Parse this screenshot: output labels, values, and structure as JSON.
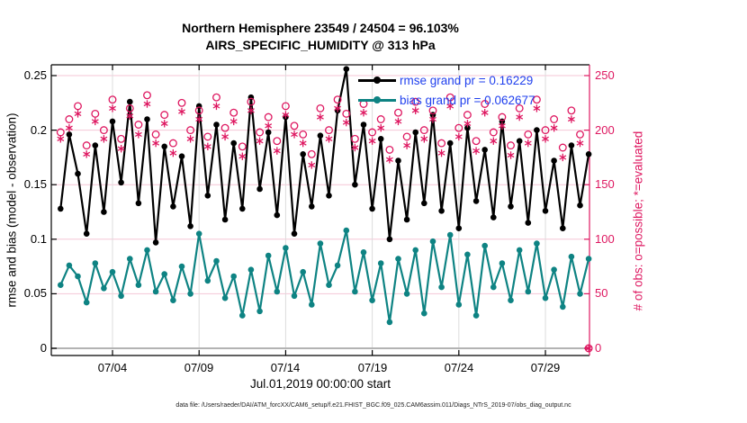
{
  "title": {
    "line1": "Northern Hemisphere 23549 / 24504 = 96.103%",
    "line2": "AIRS_SPECIFIC_HUMIDITY @ 313 hPa"
  },
  "legend": [
    {
      "label": "rmse grand pr = 0.16229",
      "color": "#000000"
    },
    {
      "label": "bias grand pr = 0.062677",
      "color": "#0e8383"
    }
  ],
  "footer": {
    "data_file": "data file: /Users/raeder/DAI/ATM_forcXX/CAM6_setup/f.e21.FHIST_BGC.f09_025.CAM6assim.011/Diags_NTrS_2019-07/obs_diag_output.nc"
  },
  "colors": {
    "pink": "#de1760",
    "teal": "#0e8383",
    "black": "#000000",
    "legend_text": "#2040ee",
    "grid_h": "#f5c6d6",
    "grid_v": "#dcdcdc",
    "zero_line": "#b3b3b3"
  },
  "chart_data": {
    "type": "line",
    "title": "Northern Hemisphere 23549 / 24504 = 96.103%",
    "subtitle": "AIRS_SPECIFIC_HUMIDITY @ 313 hPa",
    "xlabel": "Jul.01,2019 00:00:00 start",
    "ylabel_left": "rmse and bias (model - observation)",
    "ylabel_right": "# of obs: o=possible; *=evaluated",
    "stats": {
      "region": "Northern Hemisphere",
      "n_used": 23549,
      "n_possible": 24504,
      "pct_used": "96.103%",
      "rmse_grand_prior": 0.16229,
      "bias_grand_prior": 0.062677,
      "level": "313 hPa",
      "obs_type": "AIRS_SPECIFIC_HUMIDITY"
    },
    "x_axis": {
      "start": "2019-07-01 00:00:00",
      "step_days": 0.5,
      "x_start_day": 0,
      "tick_days": [
        3,
        8,
        13,
        18,
        23,
        28
      ],
      "tick_labels": [
        "07/04",
        "07/09",
        "07/14",
        "07/19",
        "07/24",
        "07/29"
      ],
      "range_days": [
        -0.53,
        30.55
      ]
    },
    "y_left": {
      "ticks": [
        0,
        0.05,
        0.1,
        0.15,
        0.2,
        0.25
      ],
      "tick_labels": [
        "0",
        "0.05",
        "0.1",
        "0.15",
        "0.2",
        "0.25"
      ],
      "range": [
        -0.0066,
        0.26
      ]
    },
    "y_right": {
      "ticks": [
        0,
        50,
        100,
        150,
        200,
        250
      ],
      "tick_labels": [
        "0",
        "50",
        "100",
        "150",
        "200",
        "250"
      ],
      "range": [
        -6.6,
        260
      ]
    },
    "grid": true,
    "zero_line": true,
    "legend_position": "top-right-inside",
    "series": [
      {
        "name": "rmse prior",
        "axis": "left",
        "color": "#000000",
        "marker": "filled-circle",
        "line_width": 2.2,
        "values": [
          0.128,
          0.196,
          0.16,
          0.105,
          0.186,
          0.125,
          0.208,
          0.152,
          0.226,
          0.133,
          0.21,
          0.097,
          0.185,
          0.13,
          0.176,
          0.112,
          0.222,
          0.14,
          0.205,
          0.118,
          0.188,
          0.128,
          0.23,
          0.146,
          0.198,
          0.122,
          0.212,
          0.105,
          0.178,
          0.13,
          0.195,
          0.14,
          0.218,
          0.256,
          0.15,
          0.205,
          0.128,
          0.192,
          0.1,
          0.172,
          0.118,
          0.198,
          0.133,
          0.214,
          0.126,
          0.188,
          0.11,
          0.202,
          0.135,
          0.182,
          0.12,
          0.208,
          0.13,
          0.19,
          0.115,
          0.2,
          0.126,
          0.172,
          0.11,
          0.186,
          0.131,
          0.178
        ]
      },
      {
        "name": "bias prior",
        "axis": "left",
        "color": "#0e8383",
        "marker": "filled-circle",
        "line_width": 2.2,
        "values": [
          0.058,
          0.076,
          0.066,
          0.042,
          0.078,
          0.055,
          0.07,
          0.048,
          0.082,
          0.058,
          0.09,
          0.052,
          0.068,
          0.044,
          0.075,
          0.05,
          0.105,
          0.062,
          0.08,
          0.046,
          0.066,
          0.03,
          0.072,
          0.034,
          0.085,
          0.052,
          0.092,
          0.048,
          0.07,
          0.04,
          0.096,
          0.058,
          0.076,
          0.108,
          0.052,
          0.088,
          0.044,
          0.078,
          0.024,
          0.082,
          0.05,
          0.09,
          0.032,
          0.098,
          0.056,
          0.104,
          0.04,
          0.086,
          0.03,
          0.094,
          0.056,
          0.078,
          0.044,
          0.09,
          0.052,
          0.096,
          0.046,
          0.072,
          0.038,
          0.084,
          0.05,
          0.082
        ]
      },
      {
        "name": "N possible",
        "axis": "right",
        "color": "#de1760",
        "marker": "open-circle",
        "values": [
          198,
          210,
          222,
          186,
          215,
          200,
          228,
          192,
          220,
          205,
          232,
          196,
          214,
          188,
          225,
          200,
          218,
          194,
          230,
          202,
          216,
          185,
          226,
          198,
          212,
          190,
          222,
          204,
          196,
          178,
          220,
          200,
          228,
          215,
          192,
          224,
          198,
          210,
          182,
          216,
          194,
          226,
          200,
          218,
          188,
          230,
          202,
          214,
          190,
          224,
          198,
          212,
          186,
          220,
          196,
          228,
          200,
          210,
          184,
          218,
          196,
          0
        ]
      },
      {
        "name": "N evaluated",
        "axis": "right",
        "color": "#de1760",
        "marker": "asterisk",
        "values": [
          192,
          202,
          215,
          178,
          208,
          192,
          220,
          183,
          213,
          196,
          224,
          188,
          206,
          179,
          217,
          192,
          210,
          185,
          222,
          194,
          208,
          176,
          218,
          190,
          204,
          181,
          214,
          196,
          188,
          168,
          212,
          192,
          220,
          207,
          184,
          216,
          190,
          202,
          173,
          208,
          186,
          218,
          192,
          210,
          179,
          222,
          194,
          206,
          181,
          216,
          190,
          204,
          177,
          212,
          188,
          220,
          192,
          202,
          175,
          210,
          188,
          0
        ]
      }
    ]
  }
}
